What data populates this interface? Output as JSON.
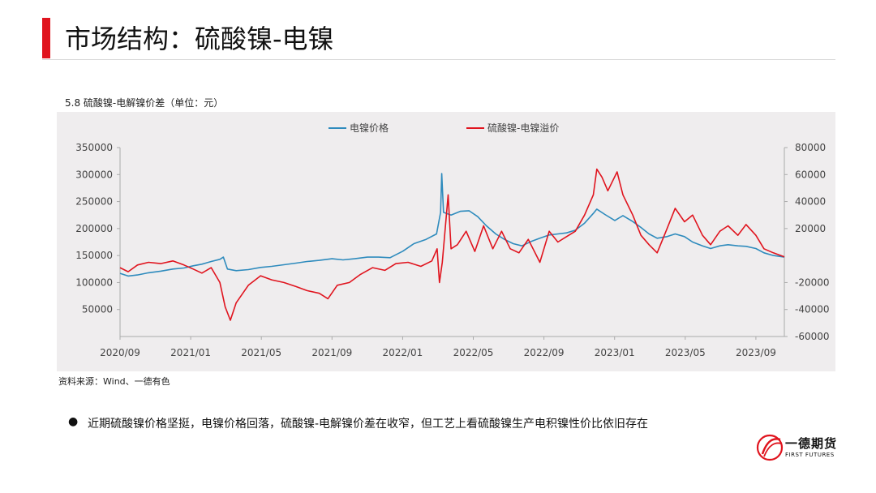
{
  "page": {
    "title": "市场结构：硫酸镍-电镍",
    "source": "资料来源：Wind、一德有色",
    "bullet": "近期硫酸镍价格坚挺，电镍价格回落，硫酸镍-电解镍价差在收窄，但工艺上看硫酸镍生产电积镍性价比依旧存在",
    "logo_cn": "一德期货",
    "logo_en": "FIRST FUTURES",
    "brand_color": "#e0141e"
  },
  "chart_data": {
    "type": "line",
    "title": "5.8 硫酸镍-电解镍价差（单位：元）",
    "xlabel": "",
    "ylabel": "",
    "x_ticks": [
      "2020/09",
      "2021/01",
      "2021/05",
      "2021/09",
      "2022/01",
      "2022/05",
      "2022/09",
      "2023/01",
      "2023/05",
      "2023/09"
    ],
    "y_left": {
      "range": [
        0,
        350000
      ],
      "ticks": [
        "50000",
        "100000",
        "150000",
        "200000",
        "250000",
        "300000",
        "350000"
      ]
    },
    "y_right": {
      "range": [
        -60000,
        80000
      ],
      "ticks": [
        "-60000",
        "-40000",
        "-20000",
        "20000",
        "40000",
        "60000",
        "80000"
      ]
    },
    "grid": false,
    "legend_position": "top",
    "x_range": [
      "2020-09-01",
      "2023-10-20"
    ],
    "series": [
      {
        "name": "电镍价格",
        "axis": "left",
        "color": "#2e8bbd",
        "points": [
          [
            "2020-09-01",
            117000
          ],
          [
            "2020-09-15",
            112000
          ],
          [
            "2020-10-01",
            114000
          ],
          [
            "2020-10-20",
            118000
          ],
          [
            "2020-11-10",
            121000
          ],
          [
            "2020-12-01",
            125000
          ],
          [
            "2020-12-20",
            127000
          ],
          [
            "2021-01-05",
            131000
          ],
          [
            "2021-01-20",
            134000
          ],
          [
            "2021-02-05",
            139000
          ],
          [
            "2021-02-20",
            143000
          ],
          [
            "2021-02-26",
            147000
          ],
          [
            "2021-03-05",
            125000
          ],
          [
            "2021-03-20",
            122000
          ],
          [
            "2021-04-10",
            124000
          ],
          [
            "2021-05-01",
            128000
          ],
          [
            "2021-05-20",
            130000
          ],
          [
            "2021-06-10",
            133000
          ],
          [
            "2021-07-01",
            136000
          ],
          [
            "2021-07-20",
            139000
          ],
          [
            "2021-08-10",
            141000
          ],
          [
            "2021-09-01",
            144000
          ],
          [
            "2021-09-20",
            142000
          ],
          [
            "2021-10-10",
            144000
          ],
          [
            "2021-11-01",
            147000
          ],
          [
            "2021-11-20",
            147000
          ],
          [
            "2021-12-10",
            146000
          ],
          [
            "2022-01-01",
            158000
          ],
          [
            "2022-01-20",
            172000
          ],
          [
            "2022-02-10",
            180000
          ],
          [
            "2022-02-28",
            190000
          ],
          [
            "2022-03-07",
            230000
          ],
          [
            "2022-03-09",
            302000
          ],
          [
            "2022-03-12",
            230000
          ],
          [
            "2022-03-25",
            225000
          ],
          [
            "2022-04-10",
            232000
          ],
          [
            "2022-04-25",
            233000
          ],
          [
            "2022-05-10",
            222000
          ],
          [
            "2022-05-25",
            205000
          ],
          [
            "2022-06-10",
            190000
          ],
          [
            "2022-06-25",
            180000
          ],
          [
            "2022-07-10",
            172000
          ],
          [
            "2022-07-25",
            168000
          ],
          [
            "2022-08-10",
            176000
          ],
          [
            "2022-08-25",
            182000
          ],
          [
            "2022-09-10",
            188000
          ],
          [
            "2022-09-25",
            190000
          ],
          [
            "2022-10-10",
            192000
          ],
          [
            "2022-10-25",
            197000
          ],
          [
            "2022-11-10",
            210000
          ],
          [
            "2022-11-25",
            228000
          ],
          [
            "2022-12-01",
            236000
          ],
          [
            "2022-12-15",
            226000
          ],
          [
            "2023-01-01",
            215000
          ],
          [
            "2023-01-15",
            224000
          ],
          [
            "2023-02-01",
            213000
          ],
          [
            "2023-02-15",
            202000
          ],
          [
            "2023-03-01",
            190000
          ],
          [
            "2023-03-15",
            182000
          ],
          [
            "2023-04-01",
            185000
          ],
          [
            "2023-04-15",
            190000
          ],
          [
            "2023-05-01",
            185000
          ],
          [
            "2023-05-15",
            175000
          ],
          [
            "2023-06-01",
            168000
          ],
          [
            "2023-06-15",
            163000
          ],
          [
            "2023-07-01",
            168000
          ],
          [
            "2023-07-15",
            170000
          ],
          [
            "2023-08-01",
            168000
          ],
          [
            "2023-08-15",
            167000
          ],
          [
            "2023-09-01",
            163000
          ],
          [
            "2023-09-15",
            155000
          ],
          [
            "2023-10-01",
            150000
          ],
          [
            "2023-10-20",
            147000
          ]
        ]
      },
      {
        "name": "硫酸镍-电镍溢价",
        "axis": "right",
        "color": "#e0141e",
        "points": [
          [
            "2020-09-01",
            -9000
          ],
          [
            "2020-09-15",
            -12000
          ],
          [
            "2020-10-01",
            -7000
          ],
          [
            "2020-10-20",
            -5000
          ],
          [
            "2020-11-10",
            -6000
          ],
          [
            "2020-12-01",
            -4000
          ],
          [
            "2020-12-20",
            -7000
          ],
          [
            "2021-01-05",
            -10000
          ],
          [
            "2021-01-20",
            -13000
          ],
          [
            "2021-02-05",
            -9000
          ],
          [
            "2021-02-20",
            -20000
          ],
          [
            "2021-03-01",
            -38000
          ],
          [
            "2021-03-10",
            -48000
          ],
          [
            "2021-03-20",
            -35000
          ],
          [
            "2021-04-10",
            -22000
          ],
          [
            "2021-05-01",
            -15000
          ],
          [
            "2021-05-20",
            -18000
          ],
          [
            "2021-06-10",
            -20000
          ],
          [
            "2021-07-01",
            -23000
          ],
          [
            "2021-07-20",
            -26000
          ],
          [
            "2021-08-10",
            -28000
          ],
          [
            "2021-08-25",
            -32000
          ],
          [
            "2021-09-10",
            -22000
          ],
          [
            "2021-10-01",
            -20000
          ],
          [
            "2021-10-20",
            -14000
          ],
          [
            "2021-11-10",
            -9000
          ],
          [
            "2021-12-01",
            -11000
          ],
          [
            "2021-12-20",
            -6000
          ],
          [
            "2022-01-10",
            -5000
          ],
          [
            "2022-02-01",
            -8000
          ],
          [
            "2022-02-20",
            -4000
          ],
          [
            "2022-03-01",
            5000
          ],
          [
            "2022-03-05",
            -20000
          ],
          [
            "2022-03-10",
            -5000
          ],
          [
            "2022-03-20",
            45000
          ],
          [
            "2022-03-25",
            5000
          ],
          [
            "2022-04-05",
            8000
          ],
          [
            "2022-04-20",
            18000
          ],
          [
            "2022-05-05",
            3000
          ],
          [
            "2022-05-20",
            22000
          ],
          [
            "2022-06-05",
            5000
          ],
          [
            "2022-06-20",
            18000
          ],
          [
            "2022-07-05",
            5000
          ],
          [
            "2022-07-20",
            2000
          ],
          [
            "2022-08-05",
            12000
          ],
          [
            "2022-08-25",
            -5000
          ],
          [
            "2022-09-10",
            18000
          ],
          [
            "2022-09-25",
            10000
          ],
          [
            "2022-10-10",
            14000
          ],
          [
            "2022-10-25",
            18000
          ],
          [
            "2022-11-10",
            30000
          ],
          [
            "2022-11-25",
            45000
          ],
          [
            "2022-12-01",
            64000
          ],
          [
            "2022-12-10",
            58000
          ],
          [
            "2022-12-20",
            48000
          ],
          [
            "2023-01-05",
            62000
          ],
          [
            "2023-01-15",
            45000
          ],
          [
            "2023-02-01",
            30000
          ],
          [
            "2023-02-15",
            15000
          ],
          [
            "2023-03-01",
            8000
          ],
          [
            "2023-03-15",
            2000
          ],
          [
            "2023-04-01",
            20000
          ],
          [
            "2023-04-15",
            35000
          ],
          [
            "2023-05-01",
            25000
          ],
          [
            "2023-05-15",
            30000
          ],
          [
            "2023-06-01",
            15000
          ],
          [
            "2023-06-15",
            8000
          ],
          [
            "2023-07-01",
            18000
          ],
          [
            "2023-07-15",
            22000
          ],
          [
            "2023-08-01",
            15000
          ],
          [
            "2023-08-15",
            23000
          ],
          [
            "2023-09-01",
            15000
          ],
          [
            "2023-09-15",
            5000
          ],
          [
            "2023-10-01",
            2000
          ],
          [
            "2023-10-20",
            -1000
          ]
        ]
      }
    ]
  }
}
